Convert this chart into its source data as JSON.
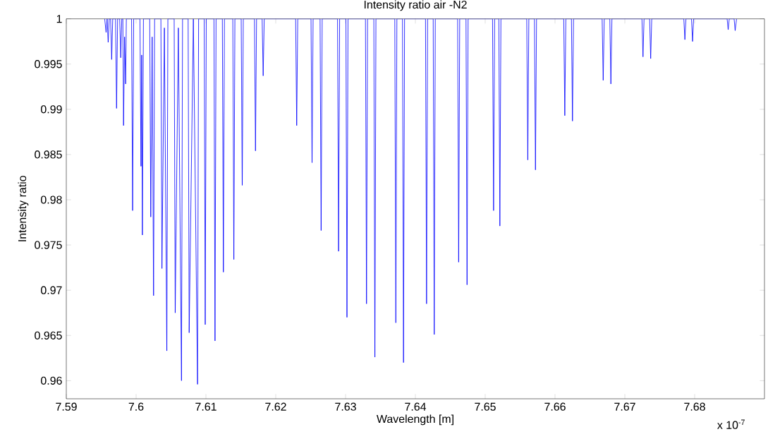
{
  "chart_data": {
    "type": "line",
    "title": "Intensity ratio air -N2",
    "xlabel": "Wavelength [m]",
    "ylabel": "Intensity ratio",
    "annotations": [
      "x 10$^{-7}$"
    ],
    "xlim": [
      7.59,
      7.69
    ],
    "ylim": [
      0.958,
      1
    ],
    "xticks": [
      7.59,
      7.6,
      7.61,
      7.62,
      7.63,
      7.64,
      7.65,
      7.66,
      7.67,
      7.68
    ],
    "yticks": [
      0.96,
      0.965,
      0.97,
      0.975,
      0.98,
      0.985,
      0.99,
      0.995,
      1
    ],
    "grid": false,
    "series": [
      {
        "color": "#0000ff",
        "x": [
          7.5955,
          7.5957,
          7.59585,
          7.596,
          7.59615,
          7.59635,
          7.5965,
          7.59665,
          7.59705,
          7.5972,
          7.59735,
          7.59765,
          7.5978,
          7.59795,
          7.5981,
          7.5982,
          7.59835,
          7.5985,
          7.5986,
          7.59935,
          7.5995,
          7.59965,
          7.60055,
          7.6007,
          7.6008,
          7.6009,
          7.60105,
          7.60195,
          7.6021,
          7.6023,
          7.6025,
          7.60265,
          7.60355,
          7.6037,
          7.60405,
          7.6044,
          7.60455,
          7.60545,
          7.6056,
          7.60605,
          7.6065,
          7.60665,
          7.60745,
          7.6076,
          7.6082,
          7.6088,
          7.60895,
          7.60975,
          7.6099,
          7.61005,
          7.61115,
          7.6113,
          7.61145,
          7.61235,
          7.6125,
          7.61265,
          7.61385,
          7.614,
          7.61415,
          7.61505,
          7.6152,
          7.61535,
          7.61695,
          7.6171,
          7.61725,
          7.61805,
          7.6182,
          7.61835,
          7.62285,
          7.623,
          7.62315,
          7.62505,
          7.6252,
          7.62535,
          7.62635,
          7.6265,
          7.62665,
          7.62885,
          7.629,
          7.62915,
          7.63005,
          7.6302,
          7.63035,
          7.63285,
          7.633,
          7.63315,
          7.63405,
          7.6342,
          7.63435,
          7.63705,
          7.6372,
          7.63735,
          7.63815,
          7.6383,
          7.63845,
          7.64145,
          7.6416,
          7.64175,
          7.64255,
          7.6427,
          7.64285,
          7.64605,
          7.6462,
          7.64635,
          7.64725,
          7.6474,
          7.64755,
          7.65105,
          7.6512,
          7.65135,
          7.65195,
          7.6521,
          7.65225,
          7.65595,
          7.6561,
          7.65625,
          7.65705,
          7.6572,
          7.65735,
          7.66125,
          7.6614,
          7.66155,
          7.66235,
          7.6625,
          7.66265,
          7.66675,
          7.6669,
          7.66705,
          7.66785,
          7.668,
          7.66815,
          7.67245,
          7.6726,
          7.67275,
          7.67355,
          7.6737,
          7.67385,
          7.67845,
          7.6786,
          7.67875,
          7.67955,
          7.6797,
          7.67985,
          7.68465,
          7.6848,
          7.68495,
          7.68565,
          7.6858,
          7.686
        ],
        "values": [
          1,
          0.9985,
          1,
          0.9974,
          1,
          1,
          0.9955,
          1,
          1,
          0.9901,
          1,
          1,
          0.9957,
          1,
          1,
          0.9882,
          0.998,
          0.9928,
          1,
          1,
          0.9788,
          1,
          1,
          0.9837,
          0.996,
          0.9761,
          1,
          1,
          0.9781,
          0.998,
          0.9694,
          1,
          1,
          0.9724,
          0.999,
          0.9633,
          1,
          1,
          0.9675,
          0.999,
          0.96,
          1,
          1,
          0.9653,
          1,
          0.9596,
          1,
          1,
          0.9662,
          1,
          1,
          0.9644,
          1,
          1,
          0.972,
          1,
          1,
          0.9734,
          1,
          1,
          0.9816,
          1,
          1,
          0.9854,
          1,
          1,
          0.9937,
          1,
          1,
          0.9882,
          1,
          1,
          0.9841,
          1,
          1,
          0.9766,
          1,
          1,
          0.9743,
          1,
          1,
          0.967,
          1,
          1,
          0.9685,
          1,
          1,
          0.9626,
          1,
          1,
          0.9664,
          1,
          1,
          0.962,
          1,
          1,
          0.9685,
          1,
          1,
          0.9651,
          1,
          1,
          0.9731,
          1,
          1,
          0.9706,
          1,
          1,
          0.9788,
          1,
          1,
          0.9771,
          1,
          1,
          0.9844,
          1,
          1,
          0.9833,
          1,
          1,
          0.9893,
          1,
          1,
          0.9887,
          1,
          1,
          0.9932,
          1,
          1,
          0.9928,
          1,
          1,
          0.9958,
          1,
          1,
          0.9956,
          1,
          1,
          0.9977,
          1,
          1,
          0.9975,
          1,
          1,
          0.9988,
          1,
          1,
          0.9987,
          1
        ]
      }
    ]
  }
}
